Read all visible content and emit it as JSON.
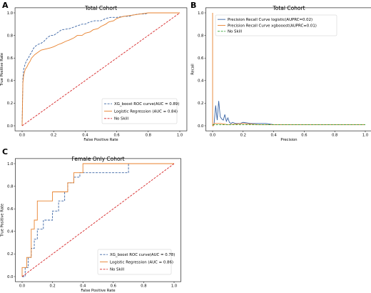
{
  "panels": [
    {
      "letter": "A"
    },
    {
      "letter": "B"
    },
    {
      "letter": "C"
    }
  ],
  "chart_data": [
    {
      "type": "line",
      "title": "Total Cohort",
      "xlabel": "False Positive Rate",
      "ylabel": "True Positive Rate",
      "xlim": [
        0,
        1
      ],
      "ylim": [
        0,
        1
      ],
      "xticks": [
        "0.0",
        "0.2",
        "0.4",
        "0.6",
        "0.8",
        "1.0"
      ],
      "yticks": [
        "0.0",
        "0.2",
        "0.4",
        "0.6",
        "0.8",
        "1.0"
      ],
      "legend_position": "bottom-right",
      "series": [
        {
          "name": "XG_boost ROC curve(AUC = 0.89)",
          "color": "#3a64a4",
          "style": "dashed",
          "x": [
            0,
            0.005,
            0.01,
            0.02,
            0.03,
            0.04,
            0.05,
            0.06,
            0.07,
            0.08,
            0.1,
            0.12,
            0.14,
            0.16,
            0.18,
            0.2,
            0.22,
            0.25,
            0.3,
            0.34,
            0.38,
            0.4,
            0.43,
            0.46,
            0.5,
            0.53,
            0.56,
            0.6,
            0.65,
            0.68,
            0.7,
            0.74,
            0.78,
            0.8,
            1.0
          ],
          "y": [
            0,
            0.42,
            0.5,
            0.55,
            0.58,
            0.6,
            0.63,
            0.65,
            0.68,
            0.7,
            0.72,
            0.73,
            0.75,
            0.78,
            0.8,
            0.8,
            0.82,
            0.85,
            0.86,
            0.88,
            0.9,
            0.9,
            0.92,
            0.93,
            0.93,
            0.95,
            0.96,
            0.96,
            0.97,
            0.97,
            0.98,
            0.99,
            0.99,
            1.0,
            1.0
          ]
        },
        {
          "name": "Logistic Regression (AUC = 0.84)",
          "color": "#e8822e",
          "style": "solid",
          "x": [
            0,
            0.005,
            0.01,
            0.02,
            0.03,
            0.04,
            0.05,
            0.06,
            0.08,
            0.1,
            0.12,
            0.15,
            0.18,
            0.2,
            0.23,
            0.25,
            0.28,
            0.3,
            0.33,
            0.35,
            0.38,
            0.4,
            0.43,
            0.45,
            0.48,
            0.5,
            0.53,
            0.55,
            0.58,
            0.6,
            0.62,
            0.65,
            0.7,
            0.75,
            0.8,
            0.85,
            0.9,
            1.0
          ],
          "y": [
            0,
            0.38,
            0.45,
            0.5,
            0.52,
            0.55,
            0.57,
            0.6,
            0.63,
            0.65,
            0.67,
            0.68,
            0.69,
            0.7,
            0.72,
            0.73,
            0.75,
            0.76,
            0.78,
            0.8,
            0.8,
            0.82,
            0.83,
            0.85,
            0.86,
            0.88,
            0.9,
            0.92,
            0.93,
            0.95,
            0.96,
            0.97,
            0.98,
            0.99,
            1.0,
            1.0,
            1.0,
            1.0
          ]
        },
        {
          "name": "No Skill",
          "color": "#d62728",
          "style": "dashed",
          "x": [
            0,
            1
          ],
          "y": [
            0,
            1
          ]
        }
      ]
    },
    {
      "type": "line",
      "title": "Total Cohort",
      "xlabel": "Precision",
      "ylabel": "Recall",
      "xlim": [
        0,
        1
      ],
      "ylim": [
        0,
        1
      ],
      "xticks": [
        "0.0",
        "0.2",
        "0.4",
        "0.6",
        "0.8",
        "1.0"
      ],
      "yticks": [
        "0.0",
        "0.2",
        "0.4",
        "0.6",
        "0.8",
        "1.0"
      ],
      "legend_position": "top-left",
      "series": [
        {
          "name": "Precision Recall Curve logistic(AUPRC=0.02)",
          "color": "#3a64a4",
          "style": "solid",
          "x": [
            0,
            0.01,
            0.02,
            0.03,
            0.04,
            0.05,
            0.06,
            0.07,
            0.08,
            0.09,
            0.1,
            0.11,
            0.12,
            0.13,
            0.15,
            0.18,
            0.2,
            0.25,
            0.3,
            0.35,
            0.4,
            0.5,
            0.6,
            0.7,
            0.8,
            0.9,
            1.0
          ],
          "y": [
            0,
            0.02,
            0.18,
            0.05,
            0.22,
            0.08,
            0.06,
            0.05,
            0.1,
            0.04,
            0.07,
            0.03,
            0.02,
            0.03,
            0.02,
            0.02,
            0.03,
            0.02,
            0.02,
            0.02,
            0.01,
            0.01,
            0.01,
            0.01,
            0.01,
            0.01,
            0.01
          ]
        },
        {
          "name": "Precision Recall Curve xgbooost(AUPRC=0.01)",
          "color": "#e8822e",
          "style": "solid",
          "x": [
            0,
            0.0,
            0.005,
            0.01,
            0.05,
            0.1,
            0.2,
            0.3,
            0.4,
            0.5,
            0.6,
            0.7,
            0.8,
            0.9,
            1.0
          ],
          "y": [
            1.0,
            0.0,
            0.0,
            0.02,
            0.02,
            0.01,
            0.02,
            0.01,
            0.01,
            0.01,
            0.01,
            0.01,
            0.01,
            0.01,
            0.01
          ]
        },
        {
          "name": "No Skill",
          "color": "#2ca02c",
          "style": "dashed",
          "x": [
            0,
            1
          ],
          "y": [
            0.01,
            0.01
          ]
        }
      ]
    },
    {
      "type": "line",
      "title": "Female Only Cohort",
      "xlabel": "False Positive Rate",
      "ylabel": "True Positive Rate",
      "xlim": [
        0,
        1
      ],
      "ylim": [
        0,
        1
      ],
      "xticks": [
        "0.0",
        "0.2",
        "0.4",
        "0.6",
        "0.8",
        "1.0"
      ],
      "yticks": [
        "0.0",
        "0.2",
        "0.4",
        "0.6",
        "0.8",
        "1.0"
      ],
      "legend_position": "bottom-right",
      "series": [
        {
          "name": "XG_boost ROC curve(AUC = 0.78)",
          "color": "#3a64a4",
          "style": "dashed",
          "x": [
            0,
            0.02,
            0.02,
            0.04,
            0.04,
            0.06,
            0.06,
            0.08,
            0.08,
            0.1,
            0.1,
            0.14,
            0.14,
            0.2,
            0.2,
            0.24,
            0.24,
            0.28,
            0.28,
            0.3,
            0.3,
            0.34,
            0.34,
            0.38,
            0.38,
            0.42,
            0.42,
            0.7,
            0.7,
            1.0
          ],
          "y": [
            0,
            0,
            0.08,
            0.08,
            0.17,
            0.17,
            0.25,
            0.25,
            0.33,
            0.33,
            0.42,
            0.42,
            0.5,
            0.5,
            0.58,
            0.58,
            0.67,
            0.67,
            0.75,
            0.75,
            0.83,
            0.83,
            0.88,
            0.88,
            0.92,
            0.92,
            0.92,
            0.92,
            1.0,
            1.0
          ]
        },
        {
          "name": "Logistic Regression (AUC = 0.86)",
          "color": "#e8822e",
          "style": "solid",
          "x": [
            0,
            0.0,
            0.03,
            0.03,
            0.06,
            0.06,
            0.08,
            0.08,
            0.1,
            0.1,
            0.2,
            0.2,
            0.3,
            0.3,
            0.34,
            0.34,
            0.4,
            0.4,
            1.0
          ],
          "y": [
            0,
            0.08,
            0.08,
            0.17,
            0.17,
            0.42,
            0.42,
            0.5,
            0.5,
            0.67,
            0.67,
            0.75,
            0.75,
            0.83,
            0.83,
            0.92,
            0.92,
            1.0,
            1.0
          ]
        },
        {
          "name": "No Skill",
          "color": "#d62728",
          "style": "dashed",
          "x": [
            0,
            1
          ],
          "y": [
            0,
            1
          ]
        }
      ]
    }
  ]
}
